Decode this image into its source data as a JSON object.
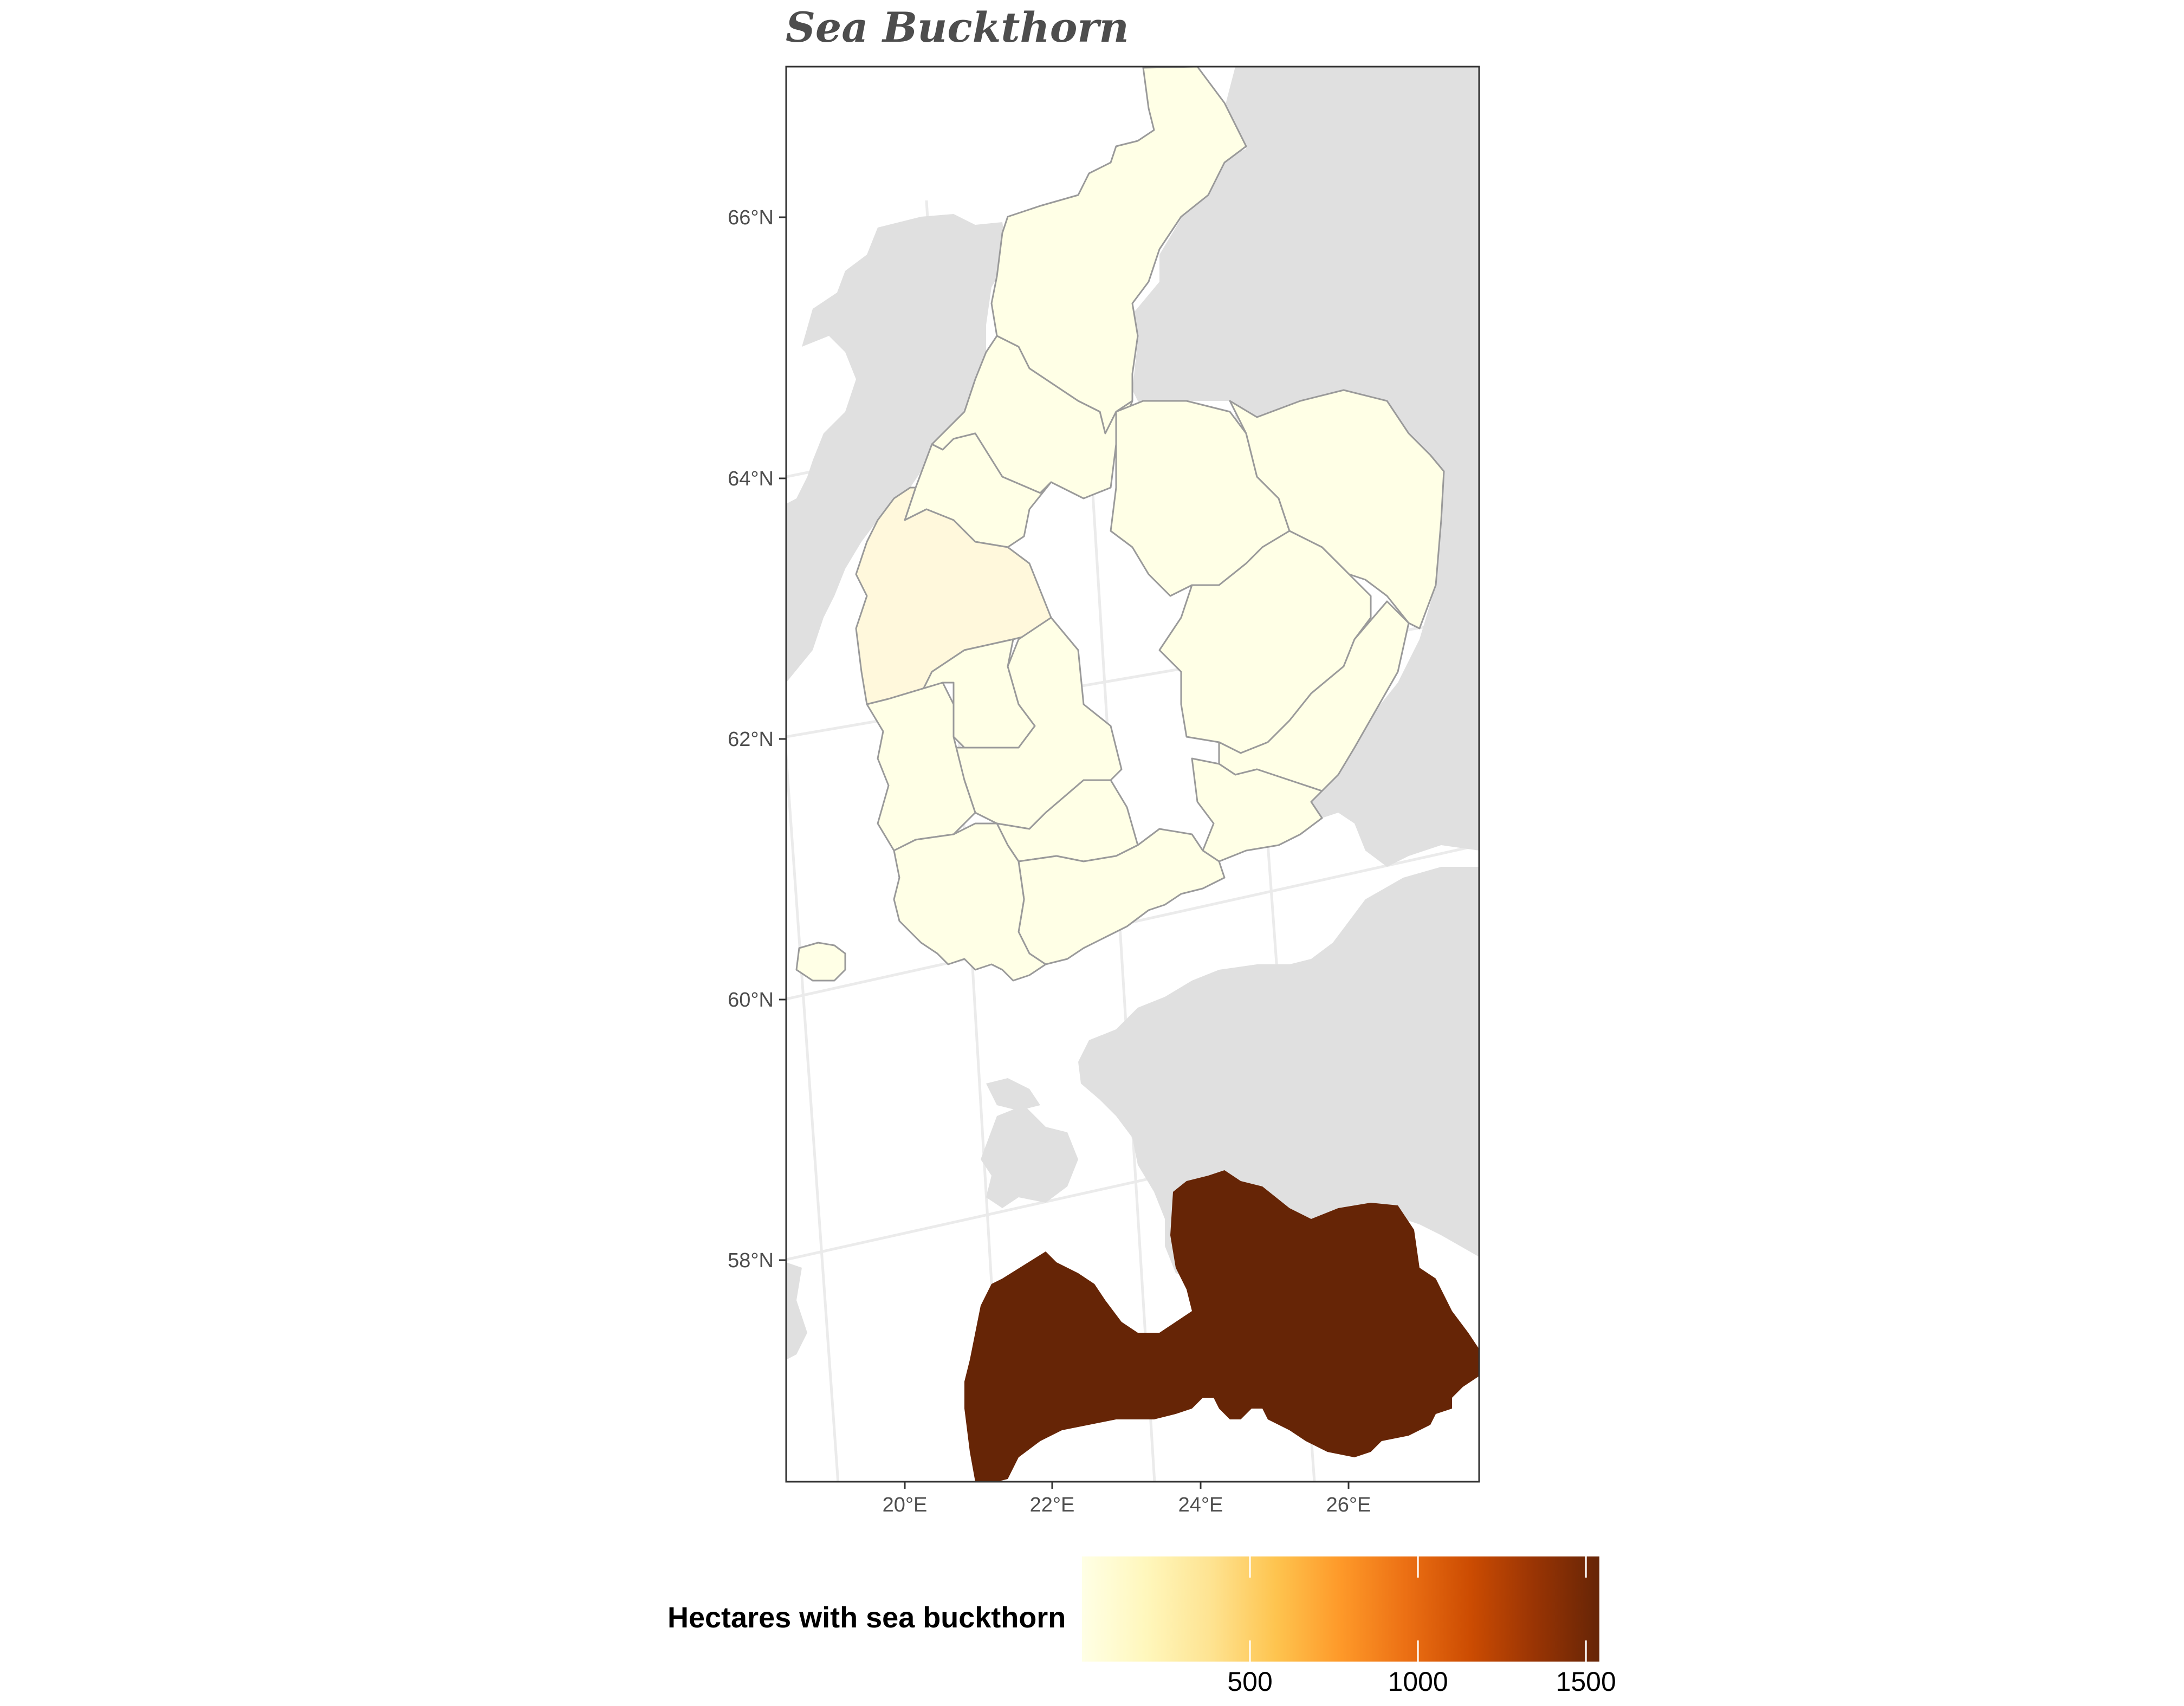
{
  "map": {
    "title": "Sea Buckthorn",
    "latitude_labels": [
      "66°N",
      "64°N",
      "62°N",
      "60°N",
      "58°N"
    ],
    "longitude_labels": [
      "20°E",
      "22°E",
      "24°E",
      "26°E"
    ],
    "colors": {
      "sea": "#ffffff",
      "other_land": "#e0e0e0",
      "graticule": "#ebebeb",
      "region_border": "#9a9a9a",
      "finland_fill": "#ffffe6",
      "west_region_fill": "#fff8dc",
      "latvia_fill": "#662506",
      "frame": "#333333"
    },
    "regions": [
      {
        "name": "Lapland",
        "value": 5
      },
      {
        "name": "North Ostrobothnia",
        "value": 5
      },
      {
        "name": "Kainuu",
        "value": 5
      },
      {
        "name": "North Karelia",
        "value": 5
      },
      {
        "name": "Central Ostrobothnia",
        "value": 5
      },
      {
        "name": "Ostrobothnia",
        "value": 40
      },
      {
        "name": "South Ostrobothnia",
        "value": 5
      },
      {
        "name": "Central Finland",
        "value": 5
      },
      {
        "name": "North Savo",
        "value": 5
      },
      {
        "name": "South Savo",
        "value": 5
      },
      {
        "name": "Satakunta",
        "value": 5
      },
      {
        "name": "Pirkanmaa",
        "value": 5
      },
      {
        "name": "Kanta-Häme",
        "value": 5
      },
      {
        "name": "Päijät-Häme",
        "value": 5
      },
      {
        "name": "Kymenlaakso",
        "value": 5
      },
      {
        "name": "South Karelia",
        "value": 5
      },
      {
        "name": "Southwest Finland",
        "value": 5
      },
      {
        "name": "Uusimaa",
        "value": 5
      },
      {
        "name": "Åland",
        "value": 5
      },
      {
        "name": "Latvia",
        "value": 1540
      }
    ]
  },
  "legend": {
    "title": "Hectares with sea buckthorn",
    "ticks": [
      {
        "value": 500,
        "label": "500"
      },
      {
        "value": 1000,
        "label": "1000"
      },
      {
        "value": 1500,
        "label": "1500"
      }
    ],
    "range": [
      0,
      1540
    ],
    "colors": [
      "#ffffe5",
      "#fff7bc",
      "#fee391",
      "#fec44f",
      "#fe9929",
      "#ec7014",
      "#cc4c02",
      "#993404",
      "#662506"
    ]
  }
}
